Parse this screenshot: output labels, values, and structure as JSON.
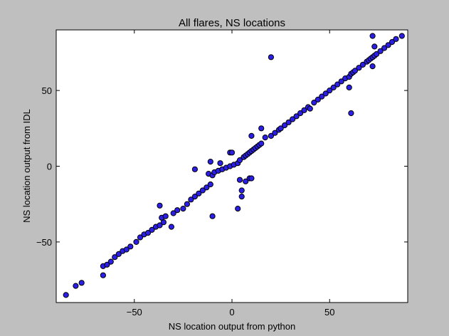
{
  "colors": {
    "background": "#bfbfbf",
    "plot_area": "#ffffff",
    "marker": "#2b1ee6"
  },
  "chart_data": {
    "type": "scatter",
    "title": "All flares, NS locations",
    "xlabel": "NS location output from python",
    "ylabel": "NS location output from IDL",
    "xlim": [
      -90,
      90
    ],
    "ylim": [
      -90,
      90
    ],
    "xticks": [
      -50,
      0,
      50
    ],
    "yticks": [
      -50,
      0,
      50
    ],
    "xtick_labels": [
      "−50",
      "0",
      "50"
    ],
    "ytick_labels": [
      "−50",
      "0",
      "50"
    ],
    "grid": false,
    "legend": "none",
    "points": [
      [
        -85,
        -85
      ],
      [
        -80,
        -79
      ],
      [
        -77,
        -77
      ],
      [
        -66,
        -72
      ],
      [
        -66,
        -66
      ],
      [
        -64,
        -65
      ],
      [
        -62,
        -63
      ],
      [
        -60,
        -60
      ],
      [
        -58,
        -58
      ],
      [
        -56,
        -56
      ],
      [
        -54,
        -55
      ],
      [
        -52,
        -53
      ],
      [
        -49,
        -50
      ],
      [
        -47,
        -47
      ],
      [
        -45,
        -45
      ],
      [
        -43,
        -44
      ],
      [
        -41,
        -42
      ],
      [
        -39,
        -40
      ],
      [
        -37,
        -39
      ],
      [
        -35,
        -37
      ],
      [
        -36,
        -34
      ],
      [
        -34,
        -33
      ],
      [
        -37,
        -26
      ],
      [
        -31,
        -40
      ],
      [
        -30,
        -31
      ],
      [
        -28,
        -29
      ],
      [
        -25,
        -28
      ],
      [
        -23,
        -25
      ],
      [
        -21,
        -22
      ],
      [
        -19,
        -20
      ],
      [
        -17,
        -18
      ],
      [
        -15,
        -16
      ],
      [
        -13,
        -14
      ],
      [
        -11,
        -12
      ],
      [
        -10,
        -33
      ],
      [
        -19,
        -2
      ],
      [
        -12,
        -5
      ],
      [
        -10,
        -6
      ],
      [
        -11,
        3
      ],
      [
        -9,
        -4
      ],
      [
        -7,
        -3
      ],
      [
        -6,
        2
      ],
      [
        -5,
        -2
      ],
      [
        -3,
        -1
      ],
      [
        -1,
        0
      ],
      [
        1,
        1
      ],
      [
        3,
        2
      ],
      [
        4,
        4
      ],
      [
        6,
        6
      ],
      [
        7,
        7
      ],
      [
        8,
        8
      ],
      [
        9,
        9
      ],
      [
        10,
        10
      ],
      [
        11,
        11
      ],
      [
        12,
        12
      ],
      [
        13,
        13
      ],
      [
        14,
        14
      ],
      [
        15,
        15
      ],
      [
        -1,
        9
      ],
      [
        0,
        9
      ],
      [
        3,
        -28
      ],
      [
        4,
        -9
      ],
      [
        5,
        -16
      ],
      [
        5,
        -20
      ],
      [
        7,
        -10
      ],
      [
        9,
        -8
      ],
      [
        10,
        -8
      ],
      [
        10,
        20
      ],
      [
        15,
        25
      ],
      [
        20,
        72
      ],
      [
        17,
        19
      ],
      [
        20,
        20
      ],
      [
        22,
        22
      ],
      [
        24,
        24
      ],
      [
        25,
        25
      ],
      [
        27,
        27
      ],
      [
        29,
        29
      ],
      [
        31,
        31
      ],
      [
        33,
        33
      ],
      [
        35,
        35
      ],
      [
        37,
        37
      ],
      [
        39,
        39
      ],
      [
        40,
        38
      ],
      [
        42,
        42
      ],
      [
        44,
        44
      ],
      [
        46,
        46
      ],
      [
        48,
        48
      ],
      [
        50,
        50
      ],
      [
        52,
        52
      ],
      [
        54,
        54
      ],
      [
        56,
        56
      ],
      [
        58,
        58
      ],
      [
        60,
        59
      ],
      [
        61,
        61
      ],
      [
        62,
        62
      ],
      [
        60,
        52
      ],
      [
        61,
        35
      ],
      [
        63,
        63
      ],
      [
        65,
        65
      ],
      [
        67,
        67
      ],
      [
        69,
        69
      ],
      [
        70,
        70
      ],
      [
        71,
        71
      ],
      [
        72,
        72
      ],
      [
        73,
        73
      ],
      [
        74,
        74
      ],
      [
        72,
        86
      ],
      [
        73,
        79
      ],
      [
        72,
        66
      ],
      [
        76,
        76
      ],
      [
        78,
        78
      ],
      [
        80,
        80
      ],
      [
        82,
        82
      ],
      [
        84,
        84
      ],
      [
        87,
        86
      ]
    ]
  }
}
